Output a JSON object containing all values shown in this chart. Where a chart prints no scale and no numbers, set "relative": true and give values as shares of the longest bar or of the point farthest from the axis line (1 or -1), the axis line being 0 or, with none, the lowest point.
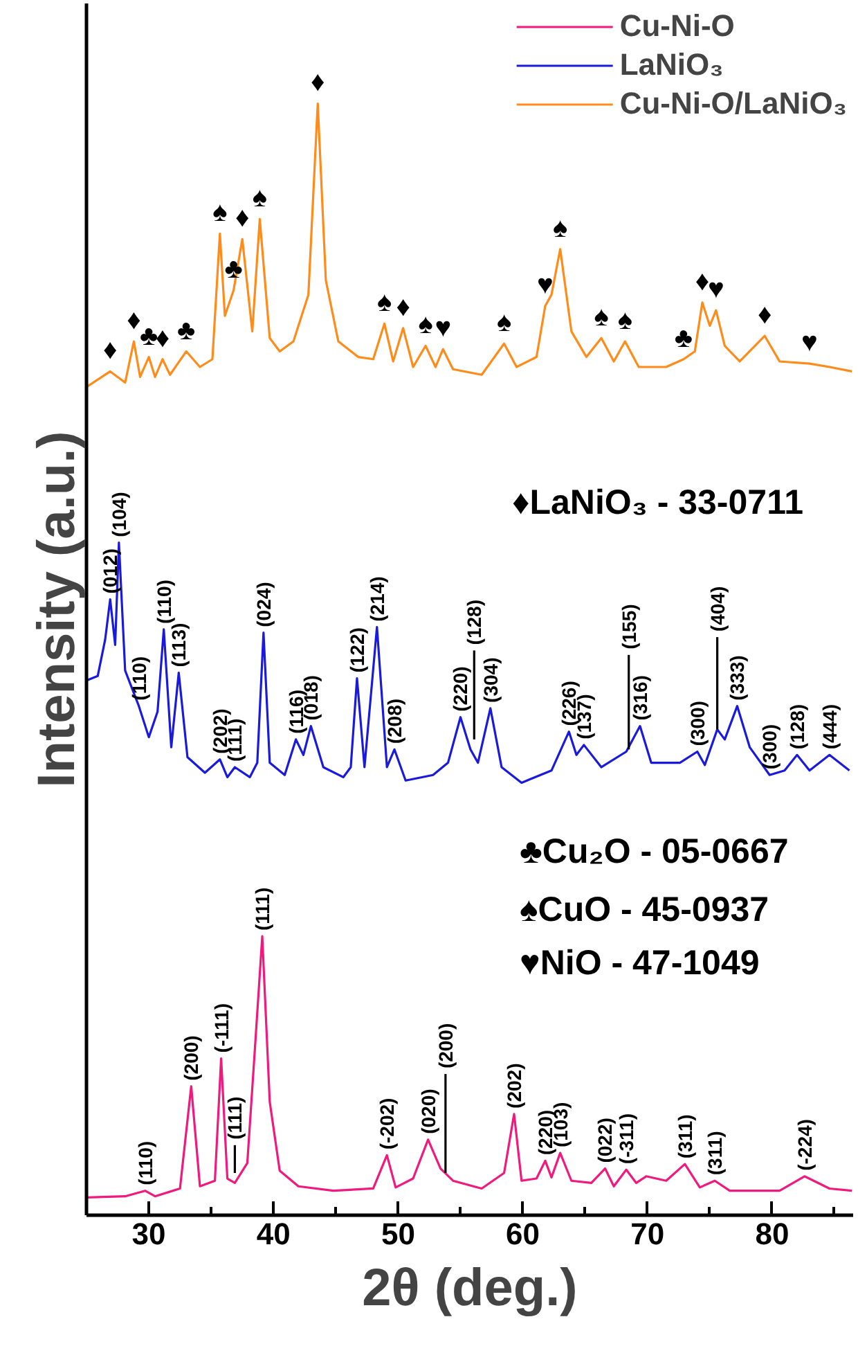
{
  "chart_data": {
    "type": "line",
    "relative": true,
    "xlabel": "2θ (deg.)",
    "ylabel": "Intensity (a.u.)",
    "xlim": [
      25,
      86.5
    ],
    "xticks": [
      30,
      {
        "value": 35,
        "label": null
      },
      40,
      {
        "value": 45,
        "label": null
      },
      50,
      {
        "value": 55,
        "label": null
      },
      60,
      {
        "value": 65,
        "label": null
      },
      70,
      {
        "value": 75,
        "label": null
      },
      80,
      {
        "value": 85,
        "label": null
      }
    ],
    "grid": false,
    "legend": "top right",
    "line_style": "solid",
    "series": [
      {
        "name": "Cu-Ni-O",
        "color": "#f0197d",
        "x": [
          25.0,
          28.1,
          29.7,
          30.5,
          32.5,
          33.4,
          34.1,
          35.3,
          35.8,
          36.3,
          36.9,
          37.9,
          38.5,
          39.1,
          39.7,
          40.5,
          42.0,
          44.8,
          48.0,
          49.1,
          49.8,
          51.2,
          52.4,
          53.4,
          54.4,
          56.7,
          58.5,
          59.3,
          59.9,
          61.1,
          61.8,
          62.3,
          63.0,
          63.9,
          65.5,
          66.6,
          67.3,
          68.3,
          69.1,
          69.9,
          71.5,
          73.0,
          74.2,
          75.4,
          76.6,
          80.6,
          82.6,
          84.6,
          86.4
        ],
        "values": [
          0.016,
          0.017,
          0.022,
          0.017,
          0.024,
          0.116,
          0.026,
          0.031,
          0.141,
          0.033,
          0.029,
          0.047,
          0.148,
          0.251,
          0.102,
          0.04,
          0.026,
          0.022,
          0.024,
          0.054,
          0.025,
          0.033,
          0.068,
          0.042,
          0.031,
          0.024,
          0.038,
          0.091,
          0.031,
          0.033,
          0.049,
          0.034,
          0.056,
          0.031,
          0.029,
          0.042,
          0.026,
          0.041,
          0.029,
          0.035,
          0.031,
          0.046,
          0.025,
          0.031,
          0.022,
          0.022,
          0.035,
          0.024,
          0.022
        ]
      },
      {
        "name": "LaNiO₃",
        "color": "#1a1adc",
        "x": [
          25.0,
          25.9,
          26.5,
          26.9,
          27.3,
          27.6,
          28.1,
          29.2,
          30.0,
          30.7,
          31.2,
          31.8,
          32.4,
          33.1,
          34.5,
          35.7,
          36.3,
          36.9,
          38.1,
          38.7,
          39.2,
          39.7,
          40.9,
          41.8,
          42.4,
          43.0,
          44.0,
          45.6,
          46.2,
          46.7,
          47.3,
          48.3,
          49.1,
          49.7,
          50.6,
          52.8,
          54.0,
          55.0,
          55.8,
          56.4,
          57.4,
          58.3,
          59.9,
          62.3,
          63.7,
          64.3,
          64.9,
          66.3,
          68.3,
          69.4,
          70.3,
          72.6,
          74.0,
          74.6,
          75.6,
          76.2,
          77.2,
          78.2,
          79.8,
          81.0,
          82.0,
          83.0,
          84.6,
          86.2
        ],
        "values": [
          0.481,
          0.485,
          0.518,
          0.554,
          0.513,
          0.605,
          0.49,
          0.458,
          0.43,
          0.453,
          0.527,
          0.421,
          0.488,
          0.412,
          0.398,
          0.41,
          0.394,
          0.403,
          0.394,
          0.407,
          0.524,
          0.407,
          0.396,
          0.428,
          0.414,
          0.44,
          0.403,
          0.394,
          0.403,
          0.483,
          0.403,
          0.529,
          0.403,
          0.419,
          0.391,
          0.396,
          0.407,
          0.448,
          0.419,
          0.407,
          0.456,
          0.403,
          0.389,
          0.4,
          0.435,
          0.414,
          0.423,
          0.403,
          0.417,
          0.44,
          0.407,
          0.407,
          0.417,
          0.405,
          0.437,
          0.428,
          0.458,
          0.421,
          0.396,
          0.4,
          0.414,
          0.4,
          0.414,
          0.4
        ]
      },
      {
        "name": "Cu-Ni-O/LaNiO₃",
        "color": "#ff8c1a",
        "x": [
          25.0,
          26.9,
          28.1,
          28.8,
          29.3,
          30.0,
          30.5,
          31.1,
          31.7,
          33.0,
          34.1,
          35.1,
          35.7,
          36.1,
          36.8,
          37.5,
          38.3,
          38.9,
          39.7,
          40.5,
          41.6,
          42.8,
          43.55,
          44.2,
          45.2,
          46.8,
          48.0,
          48.9,
          49.6,
          50.4,
          51.2,
          52.2,
          53.0,
          53.6,
          54.4,
          56.7,
          58.5,
          59.5,
          61.1,
          61.8,
          62.3,
          63.0,
          63.9,
          65.1,
          66.3,
          67.3,
          68.2,
          69.3,
          71.5,
          72.9,
          73.8,
          74.4,
          75.0,
          75.5,
          76.2,
          77.4,
          79.4,
          80.6,
          83.0,
          84.6,
          86.4
        ],
        "values": [
          0.745,
          0.759,
          0.749,
          0.786,
          0.754,
          0.772,
          0.754,
          0.77,
          0.756,
          0.777,
          0.763,
          0.77,
          0.883,
          0.809,
          0.832,
          0.878,
          0.795,
          0.896,
          0.789,
          0.777,
          0.786,
          0.828,
          1.0,
          0.841,
          0.786,
          0.772,
          0.77,
          0.802,
          0.768,
          0.798,
          0.763,
          0.782,
          0.763,
          0.779,
          0.761,
          0.756,
          0.784,
          0.763,
          0.772,
          0.818,
          0.828,
          0.869,
          0.795,
          0.772,
          0.789,
          0.768,
          0.786,
          0.763,
          0.763,
          0.77,
          0.777,
          0.821,
          0.8,
          0.814,
          0.782,
          0.768,
          0.791,
          0.768,
          0.766,
          0.763,
          0.759
        ]
      },
      {
        "color": "#000000",
        "x": [
          56.1,
          56.1
        ],
        "values": [
          0.428,
          0.508
        ]
      },
      {
        "color": "#000000",
        "x": [
          68.5,
          68.5
        ],
        "values": [
          0.419,
          0.504
        ]
      },
      {
        "color": "#000000",
        "x": [
          75.6,
          75.6
        ],
        "values": [
          0.437,
          0.52
        ]
      },
      {
        "color": "#000000",
        "x": [
          36.9,
          36.9
        ],
        "values": [
          0.038,
          0.063
        ]
      },
      {
        "color": "#000000",
        "x": [
          53.8,
          53.8
        ],
        "values": [
          0.038,
          0.127
        ]
      }
    ],
    "annotations": [
      "♦LaNiO₃ - 33-0711",
      "♣Cu₂O - 05-0667",
      "♠CuO   - 45-0937",
      "♥NiO    - 47-1049",
      {
        "text": "♦",
        "x": 26.9,
        "y": 0.759
      },
      {
        "text": "♦",
        "x": 28.8,
        "y": 0.786
      },
      {
        "text": "♣",
        "x": 30.0,
        "y": 0.772
      },
      {
        "text": "♦",
        "x": 31.1,
        "y": 0.77
      },
      {
        "text": "♣",
        "x": 33.0,
        "y": 0.777
      },
      {
        "text": "♠",
        "x": 35.7,
        "y": 0.883
      },
      {
        "text": "♣",
        "x": 36.8,
        "y": 0.832
      },
      {
        "text": "♦",
        "x": 37.5,
        "y": 0.878
      },
      {
        "text": "♠",
        "x": 38.9,
        "y": 0.896
      },
      {
        "text": "♦",
        "x": 43.55,
        "y": 1.0
      },
      {
        "text": "♠",
        "x": 48.9,
        "y": 0.802
      },
      {
        "text": "♦",
        "x": 50.4,
        "y": 0.798
      },
      {
        "text": "♠",
        "x": 52.2,
        "y": 0.782
      },
      {
        "text": "♥",
        "x": 53.6,
        "y": 0.779
      },
      {
        "text": "♠",
        "x": 58.5,
        "y": 0.784
      },
      {
        "text": "♥",
        "x": 61.8,
        "y": 0.818
      },
      {
        "text": "♠",
        "x": 63.0,
        "y": 0.869
      },
      {
        "text": "♠",
        "x": 66.3,
        "y": 0.789
      },
      {
        "text": "♠",
        "x": 68.2,
        "y": 0.786
      },
      {
        "text": "♣",
        "x": 72.9,
        "y": 0.77
      },
      {
        "text": "♦",
        "x": 74.4,
        "y": 0.821
      },
      {
        "text": "♥",
        "x": 75.5,
        "y": 0.814
      },
      {
        "text": "♦",
        "x": 79.4,
        "y": 0.791
      },
      {
        "text": "♥",
        "x": 83.0,
        "y": 0.766
      },
      {
        "text": "(012)",
        "x": 26.9,
        "y": 0.554
      },
      {
        "text": "(104)",
        "x": 27.6,
        "y": 0.605
      },
      {
        "text": "(110)",
        "x": 29.2,
        "y": 0.458
      },
      {
        "text": "(110)",
        "x": 31.2,
        "y": 0.527
      },
      {
        "text": "(113)",
        "x": 32.4,
        "y": 0.488
      },
      {
        "text": "(202)",
        "x": 35.7,
        "y": 0.41
      },
      {
        "text": "(111)",
        "x": 36.9,
        "y": 0.403
      },
      {
        "text": "(024)",
        "x": 39.2,
        "y": 0.524
      },
      {
        "text": "(116)",
        "x": 41.8,
        "y": 0.428
      },
      {
        "text": "(018)",
        "x": 43.0,
        "y": 0.44
      },
      {
        "text": "(122)",
        "x": 46.7,
        "y": 0.483
      },
      {
        "text": "(214)",
        "x": 48.3,
        "y": 0.529
      },
      {
        "text": "(208)",
        "x": 49.7,
        "y": 0.419
      },
      {
        "text": "(220)",
        "x": 55.0,
        "y": 0.448
      },
      {
        "text": "(128)",
        "x": 56.1,
        "y": 0.508
      },
      {
        "text": "(304)",
        "x": 57.4,
        "y": 0.456
      },
      {
        "text": "(226)",
        "x": 63.7,
        "y": 0.435
      },
      {
        "text": "(137)",
        "x": 64.9,
        "y": 0.423
      },
      {
        "text": "(155)",
        "x": 68.5,
        "y": 0.504
      },
      {
        "text": "(316)",
        "x": 69.4,
        "y": 0.44
      },
      {
        "text": "(300)",
        "x": 74.0,
        "y": 0.417
      },
      {
        "text": "(404)",
        "x": 75.6,
        "y": 0.52
      },
      {
        "text": "(333)",
        "x": 77.2,
        "y": 0.458
      },
      {
        "text": "(300)",
        "x": 79.8,
        "y": 0.396
      },
      {
        "text": "(128)",
        "x": 82.0,
        "y": 0.414
      },
      {
        "text": "(444)",
        "x": 84.6,
        "y": 0.414
      },
      {
        "text": "(110)",
        "x": 29.7,
        "y": 0.022
      },
      {
        "text": "(200)",
        "x": 33.4,
        "y": 0.116
      },
      {
        "text": "(-111)",
        "x": 35.8,
        "y": 0.141
      },
      {
        "text": "(111)",
        "x": 36.9,
        "y": 0.063
      },
      {
        "text": "(111)",
        "x": 39.1,
        "y": 0.251
      },
      {
        "text": "(-202)",
        "x": 49.1,
        "y": 0.054
      },
      {
        "text": "(020)",
        "x": 52.4,
        "y": 0.068
      },
      {
        "text": "(200)",
        "x": 53.8,
        "y": 0.127
      },
      {
        "text": "(202)",
        "x": 59.3,
        "y": 0.091
      },
      {
        "text": "(220)",
        "x": 61.8,
        "y": 0.049
      },
      {
        "text": "(103)",
        "x": 63.0,
        "y": 0.056
      },
      {
        "text": "(022)",
        "x": 66.6,
        "y": 0.042
      },
      {
        "text": "(-311)",
        "x": 68.3,
        "y": 0.041
      },
      {
        "text": "(311)",
        "x": 73.0,
        "y": 0.046
      },
      {
        "text": "(311)",
        "x": 75.4,
        "y": 0.031
      },
      {
        "text": "(-224)",
        "x": 82.6,
        "y": 0.035
      }
    ]
  }
}
